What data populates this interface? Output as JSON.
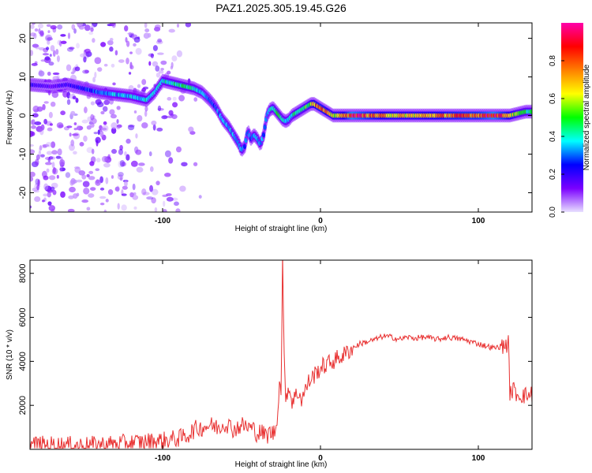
{
  "figure_title": "PAZ1.2025.305.19.45.G26",
  "chart_data": [
    {
      "type": "heatmap",
      "title": "PAZ1.2025.305.19.45.G26",
      "xlabel": "Height of straight line (km)",
      "ylabel": "Frequency (Hz)",
      "xlim": [
        -184,
        134
      ],
      "ylim": [
        -25,
        24
      ],
      "xticks": [
        -100,
        0,
        100
      ],
      "yticks": [
        20,
        10,
        0,
        -10,
        -20
      ],
      "colorbar": {
        "label": "Normalized spectral amplitude",
        "range": [
          0.0,
          1.0
        ],
        "ticks": [
          0.0,
          0.2,
          0.4,
          0.6,
          0.8
        ],
        "colormap": [
          "#e8e0ff",
          "#7b00ff",
          "#0000ff",
          "#00ffff",
          "#00ff00",
          "#ffff00",
          "#ff7f00",
          "#ff0000",
          "#ff00aa"
        ]
      },
      "ridge": {
        "x": [
          -184,
          -170,
          -160,
          -150,
          -140,
          -130,
          -120,
          -110,
          -105,
          -100,
          -95,
          -90,
          -85,
          -80,
          -75,
          -70,
          -66,
          -62,
          -58,
          -55,
          -52,
          -50,
          -48,
          -46,
          -44,
          -42,
          -40,
          -38,
          -36,
          -34,
          -32,
          -30,
          -28,
          -26,
          -24,
          -22,
          -20,
          -18,
          -16,
          -14,
          -12,
          -10,
          -8,
          -6,
          -4,
          -2,
          0,
          2,
          4,
          6,
          8,
          10,
          15,
          20,
          30,
          40,
          50,
          60,
          70,
          80,
          90,
          100,
          110,
          120,
          125,
          130,
          134
        ],
        "y": [
          8,
          7.5,
          8,
          7,
          6,
          5.5,
          5,
          4,
          6,
          9,
          8.5,
          8,
          7.5,
          7,
          6,
          4,
          2,
          -1,
          -3,
          -5,
          -7,
          -9,
          -8,
          -4,
          -6,
          -5,
          -6,
          -7.5,
          -5,
          0,
          1.5,
          2,
          1,
          0,
          -1,
          -1.5,
          -1,
          0,
          0.5,
          1,
          1.5,
          2,
          2.5,
          3,
          3,
          2.5,
          2,
          1.5,
          1,
          0.5,
          0,
          0,
          0,
          0,
          0,
          0,
          0,
          0,
          0,
          0,
          0,
          0,
          0,
          0,
          0.5,
          1,
          1
        ],
        "amplitude": [
          0.2,
          0.15,
          0.2,
          0.25,
          0.3,
          0.35,
          0.35,
          0.4,
          0.35,
          0.4,
          0.4,
          0.45,
          0.45,
          0.4,
          0.35,
          0.3,
          0.3,
          0.35,
          0.35,
          0.35,
          0.35,
          0.4,
          0.3,
          0.3,
          0.3,
          0.35,
          0.35,
          0.35,
          0.3,
          0.3,
          0.35,
          0.45,
          0.45,
          0.45,
          0.4,
          0.4,
          0.4,
          0.4,
          0.45,
          0.45,
          0.45,
          0.5,
          0.5,
          0.6,
          0.7,
          0.75,
          0.75,
          0.75,
          0.7,
          0.6,
          0.65,
          0.6,
          0.7,
          0.95,
          0.8,
          0.7,
          0.65,
          0.65,
          0.7,
          0.75,
          0.8,
          0.8,
          0.95,
          0.7,
          0.5,
          0.45,
          0.45
        ]
      },
      "noise_region": {
        "x_range": [
          -184,
          -75
        ],
        "amplitude": 0.12
      }
    },
    {
      "type": "line",
      "xlabel": "Height of straight line (km)",
      "ylabel": "SNR (10 * v/v)",
      "xlim": [
        -184,
        134
      ],
      "ylim": [
        0,
        8600
      ],
      "xticks": [
        -100,
        0,
        100
      ],
      "yticks": [
        2000,
        4000,
        6000,
        8000
      ],
      "color": "#e83030",
      "x": [
        -184,
        -170,
        -150,
        -130,
        -120,
        -110,
        -100,
        -90,
        -85,
        -80,
        -75,
        -70,
        -65,
        -60,
        -55,
        -50,
        -45,
        -42,
        -40,
        -38,
        -36,
        -34,
        -32,
        -30,
        -28,
        -26,
        -25,
        -24,
        -23,
        -22,
        -20,
        -18,
        -16,
        -14,
        -12,
        -10,
        -8,
        -5,
        0,
        5,
        10,
        15,
        20,
        25,
        30,
        35,
        40,
        45,
        50,
        55,
        60,
        65,
        70,
        75,
        80,
        85,
        90,
        95,
        100,
        105,
        110,
        115,
        119,
        120,
        122,
        125,
        130,
        134
      ],
      "y": [
        220,
        200,
        180,
        250,
        300,
        350,
        400,
        500,
        600,
        900,
        1000,
        1100,
        1000,
        1200,
        900,
        1100,
        1000,
        900,
        700,
        800,
        700,
        600,
        800,
        700,
        1000,
        3000,
        2600,
        8600,
        4000,
        2500,
        2800,
        2200,
        2400,
        2600,
        2300,
        2600,
        3000,
        3300,
        3700,
        3900,
        4100,
        4300,
        4600,
        4800,
        4900,
        5000,
        5150,
        5100,
        5000,
        5100,
        5050,
        5100,
        5050,
        5000,
        5100,
        5050,
        5000,
        4900,
        4800,
        4700,
        4600,
        4700,
        4800,
        2600,
        2700,
        2500,
        2450,
        2500
      ],
      "noise_amplitude": 260
    }
  ]
}
